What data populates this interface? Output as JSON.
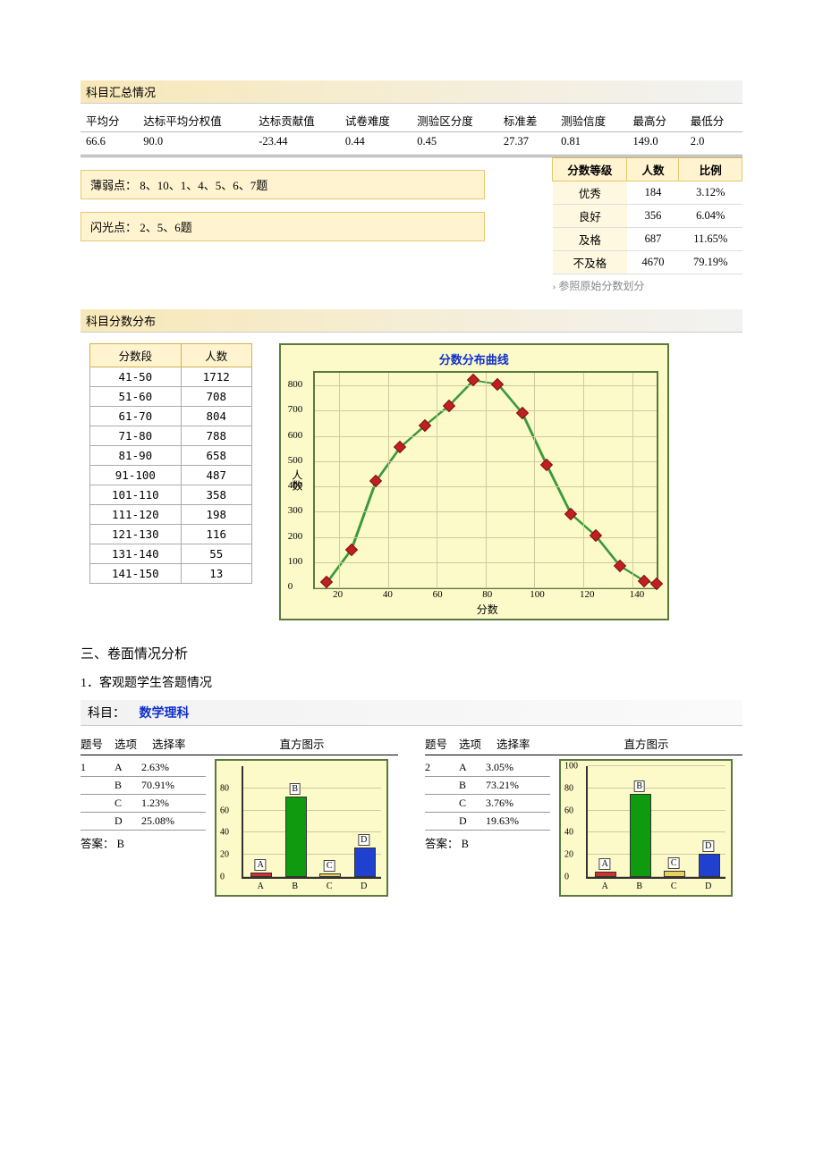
{
  "section1": {
    "title": "科目汇总情况",
    "columns": [
      "平均分",
      "达标平均分权值",
      "达标贡献值",
      "试卷难度",
      "测验区分度",
      "标准差",
      "测验信度",
      "最高分",
      "最低分"
    ],
    "values": [
      "66.6",
      "90.0",
      "-23.44",
      "0.44",
      "0.45",
      "27.37",
      "0.81",
      "149.0",
      "2.0"
    ]
  },
  "weak": {
    "label": "薄弱点：",
    "text": "8、10、1、4、5、6、7题"
  },
  "bright": {
    "label": "闪光点：",
    "text": "2、5、6题"
  },
  "grade_table": {
    "headers": [
      "分数等级",
      "人数",
      "比例"
    ],
    "rows": [
      [
        "优秀",
        "184",
        "3.12%"
      ],
      [
        "良好",
        "356",
        "6.04%"
      ],
      [
        "及格",
        "687",
        "11.65%"
      ],
      [
        "不及格",
        "4670",
        "79.19%"
      ]
    ],
    "note": "› 参照原始分数划分"
  },
  "section2": {
    "title": "科目分数分布",
    "dist_headers": [
      "分数段",
      "人数"
    ],
    "dist_rows": [
      [
        "41-50",
        "1712"
      ],
      [
        "51-60",
        "708"
      ],
      [
        "61-70",
        "804"
      ],
      [
        "71-80",
        "788"
      ],
      [
        "81-90",
        "658"
      ],
      [
        "91-100",
        "487"
      ],
      [
        "101-110",
        "358"
      ],
      [
        "111-120",
        "198"
      ],
      [
        "121-130",
        "116"
      ],
      [
        "131-140",
        "55"
      ],
      [
        "141-150",
        "13"
      ]
    ]
  },
  "chart": {
    "title": "分数分布曲线",
    "ylabel": "人数",
    "xlabel": "分数",
    "xlim": [
      10,
      150
    ],
    "ylim": [
      0,
      850
    ],
    "xticks": [
      20,
      40,
      60,
      80,
      100,
      120,
      140
    ],
    "yticks": [
      0,
      100,
      200,
      300,
      400,
      500,
      600,
      700,
      800
    ],
    "grid_color": "#d0caa0",
    "bg_color": "#fcfac8",
    "border_color": "#5a7a3a",
    "line_color": "#3a9a3a",
    "marker_color": "#c02020",
    "points": [
      {
        "x": 15,
        "y": 20
      },
      {
        "x": 25,
        "y": 150
      },
      {
        "x": 35,
        "y": 420
      },
      {
        "x": 45,
        "y": 555
      },
      {
        "x": 55,
        "y": 640
      },
      {
        "x": 65,
        "y": 720
      },
      {
        "x": 75,
        "y": 820
      },
      {
        "x": 85,
        "y": 805
      },
      {
        "x": 95,
        "y": 690
      },
      {
        "x": 105,
        "y": 485
      },
      {
        "x": 115,
        "y": 290
      },
      {
        "x": 125,
        "y": 205
      },
      {
        "x": 135,
        "y": 85
      },
      {
        "x": 145,
        "y": 25
      },
      {
        "x": 150,
        "y": 15
      }
    ]
  },
  "analysis": {
    "h3": "三、卷面情况分析",
    "h4": "1．客观题学生答题情况"
  },
  "subject": {
    "label": "科目：",
    "name": "数学理科"
  },
  "q_header": [
    "题号",
    "选项",
    "选择率",
    "直方图示"
  ],
  "answer_label": "答案：",
  "questions": [
    {
      "num": "1",
      "answer": "B",
      "options": [
        {
          "opt": "A",
          "pct": "2.63%",
          "val": 2.63,
          "color": "#d03030"
        },
        {
          "opt": "B",
          "pct": "70.91%",
          "val": 70.91,
          "color": "#109a10"
        },
        {
          "opt": "C",
          "pct": "1.23%",
          "val": 1.23,
          "color": "#e8d060"
        },
        {
          "opt": "D",
          "pct": "25.08%",
          "val": 25.08,
          "color": "#2040d0"
        }
      ],
      "ymax": 100,
      "yticks": [
        0,
        20,
        40,
        60,
        80
      ]
    },
    {
      "num": "2",
      "answer": "B",
      "options": [
        {
          "opt": "A",
          "pct": "3.05%",
          "val": 3.05,
          "color": "#d03030"
        },
        {
          "opt": "B",
          "pct": "73.21%",
          "val": 73.21,
          "color": "#109a10"
        },
        {
          "opt": "C",
          "pct": "3.76%",
          "val": 3.76,
          "color": "#e8d060"
        },
        {
          "opt": "D",
          "pct": "19.63%",
          "val": 19.63,
          "color": "#2040d0"
        }
      ],
      "ymax": 100,
      "yticks": [
        0,
        20,
        40,
        60,
        80,
        100
      ]
    }
  ]
}
